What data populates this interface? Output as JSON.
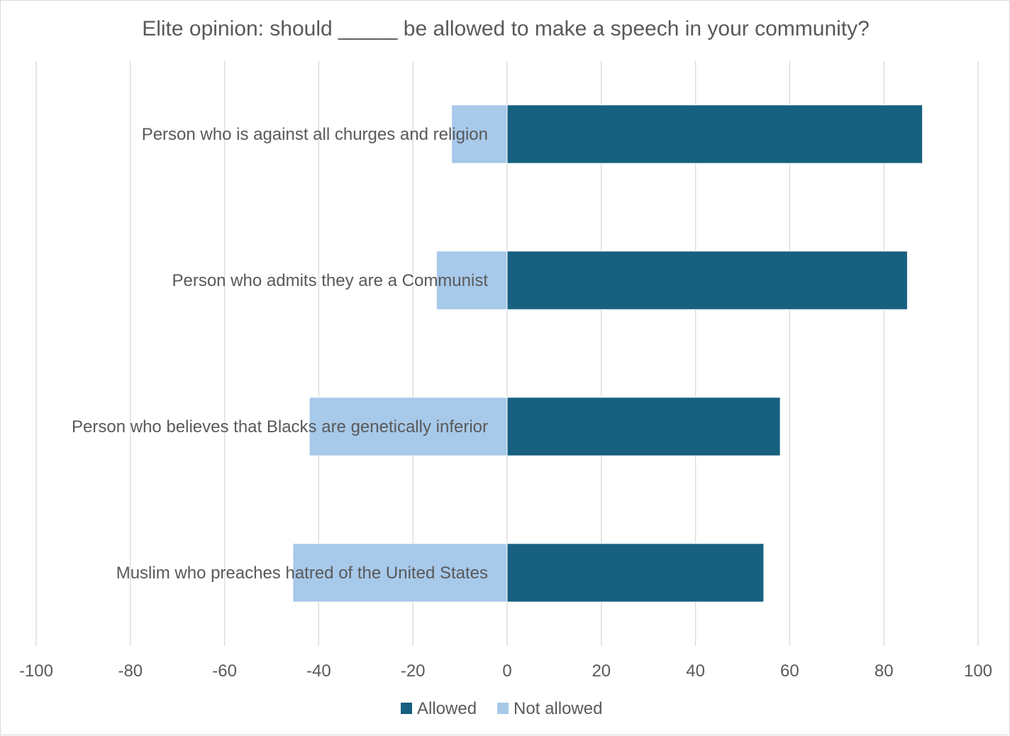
{
  "chart_data": {
    "type": "bar",
    "orientation": "horizontal",
    "stacked": true,
    "title": "Elite opinion: should _____ be allowed to make a speech in your community?",
    "categories": [
      "Person who is against all churges and religion",
      "Person who admits they are a Communist",
      "Person who believes that Blacks are genetically inferior",
      "Muslim who preaches hatred of the United States"
    ],
    "series": [
      {
        "name": "Allowed",
        "color": "#17607f",
        "values": [
          88.2,
          85.0,
          58.0,
          54.5
        ]
      },
      {
        "name": "Not allowed",
        "color": "#a7c9ea",
        "values": [
          -11.8,
          -15.0,
          -42.0,
          -45.5
        ]
      }
    ],
    "xlim": [
      -100,
      100
    ],
    "xticks": [
      "-100",
      "-80",
      "-60",
      "-40",
      "-20",
      "0",
      "20",
      "40",
      "60",
      "80",
      "100"
    ],
    "grid": true,
    "legend_position": "bottom"
  }
}
